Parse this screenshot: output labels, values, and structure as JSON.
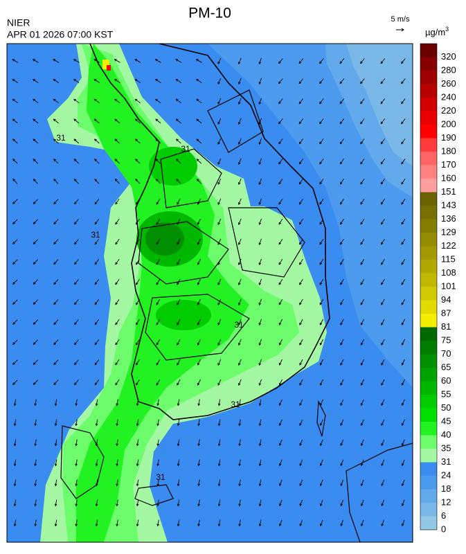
{
  "header": {
    "title": "PM-10",
    "agency": "NIER",
    "timestamp": "APR 01 2026 07:00 KST",
    "wind_scale": "5 m/s",
    "unit": "µg/m",
    "unit_exponent": "3"
  },
  "contour_labels": [
    "31",
    "31",
    "31",
    "31",
    "31",
    "31"
  ],
  "legend": {
    "levels": [
      {
        "label": "320",
        "color": "#6a0000"
      },
      {
        "label": "280",
        "color": "#870000"
      },
      {
        "label": "260",
        "color": "#a00000"
      },
      {
        "label": "240",
        "color": "#b80000"
      },
      {
        "label": "220",
        "color": "#d20000"
      },
      {
        "label": "200",
        "color": "#ea0000"
      },
      {
        "label": "190",
        "color": "#ff0000"
      },
      {
        "label": "180",
        "color": "#ff3c3c"
      },
      {
        "label": "170",
        "color": "#ff6464"
      },
      {
        "label": "160",
        "color": "#ff8282"
      },
      {
        "label": "151",
        "color": "#ff9e9e"
      },
      {
        "label": "143",
        "color": "#6a6200"
      },
      {
        "label": "136",
        "color": "#776f00"
      },
      {
        "label": "129",
        "color": "#857d00"
      },
      {
        "label": "122",
        "color": "#938b00"
      },
      {
        "label": "115",
        "color": "#a29a00"
      },
      {
        "label": "108",
        "color": "#b1a900"
      },
      {
        "label": "101",
        "color": "#c0b800"
      },
      {
        "label": "94",
        "color": "#d0c800"
      },
      {
        "label": "87",
        "color": "#e2da00"
      },
      {
        "label": "81",
        "color": "#f4ee00"
      },
      {
        "label": "75",
        "color": "#006a00"
      },
      {
        "label": "70",
        "color": "#007c00"
      },
      {
        "label": "65",
        "color": "#008f00"
      },
      {
        "label": "60",
        "color": "#00a300"
      },
      {
        "label": "55",
        "color": "#00b800"
      },
      {
        "label": "50",
        "color": "#00cc00"
      },
      {
        "label": "45",
        "color": "#00e000"
      },
      {
        "label": "40",
        "color": "#22f222"
      },
      {
        "label": "35",
        "color": "#6cfc6c"
      },
      {
        "label": "31",
        "color": "#a4f8a4"
      },
      {
        "label": "24",
        "color": "#3a8cf0"
      },
      {
        "label": "18",
        "color": "#4c9bee"
      },
      {
        "label": "12",
        "color": "#62aaeb"
      },
      {
        "label": "6",
        "color": "#7ab8e8"
      },
      {
        "label": "0",
        "color": "#90c8e6"
      }
    ]
  }
}
